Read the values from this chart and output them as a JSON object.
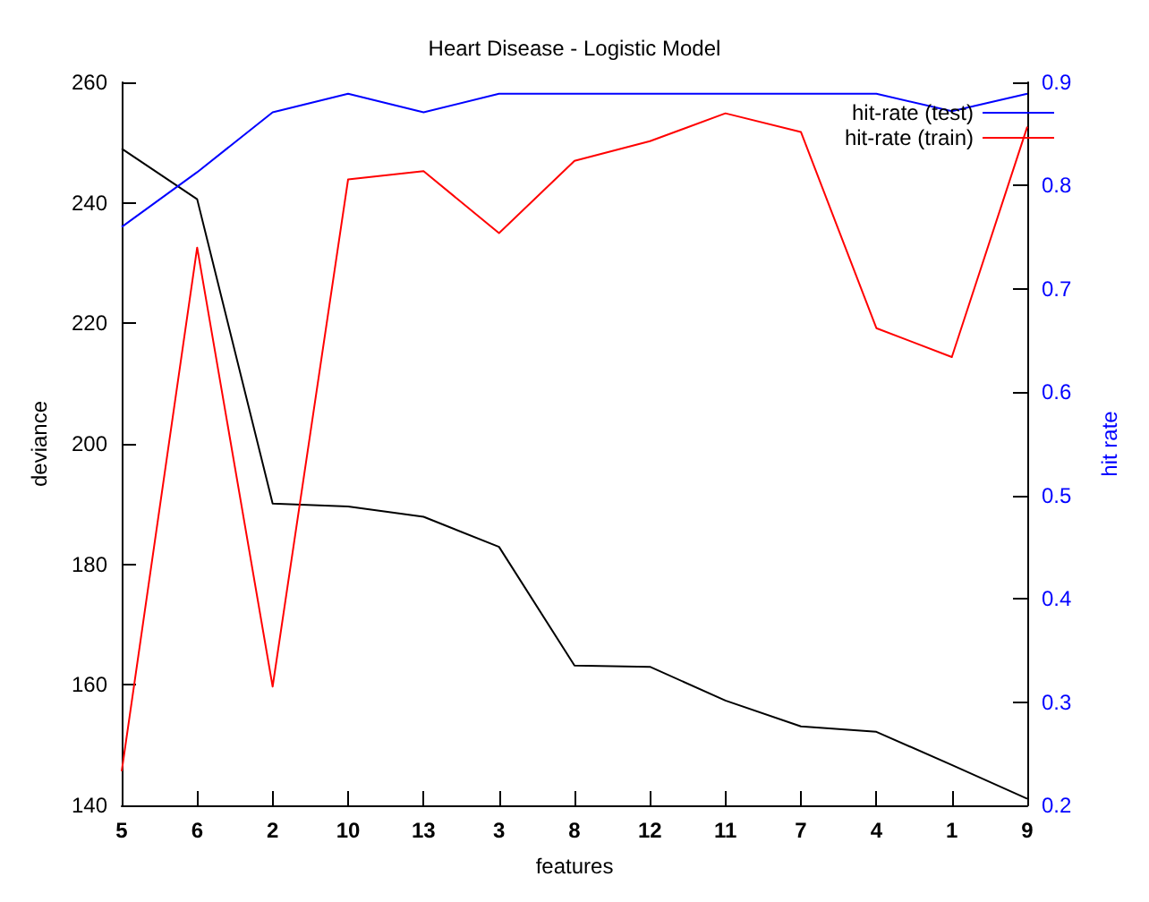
{
  "chart_data": {
    "type": "line",
    "title": "Heart Disease - Logistic Model",
    "xlabel": "features",
    "ylabel": "deviance",
    "y2label": "hit rate",
    "categories": [
      "5",
      "6",
      "2",
      "10",
      "13",
      "3",
      "8",
      "12",
      "11",
      "7",
      "4",
      "1",
      "9"
    ],
    "series": [
      {
        "color": "#000000",
        "values": [
          249.0,
          240.6,
          190.1,
          189.6,
          187.9,
          182.9,
          163.2,
          163.0,
          157.4,
          153.1,
          152.2,
          146.7,
          141.1
        ]
      },
      {
        "name": "hit-rate (test)",
        "color": "#0000ff",
        "axis": "y2",
        "values": [
          0.76,
          0.813,
          0.871,
          0.889,
          0.871,
          0.889,
          0.889,
          0.889,
          0.889,
          0.889,
          0.889,
          0.872,
          0.889
        ]
      },
      {
        "name": "hit-rate (train)",
        "color": "#ff0000",
        "axis": "y2",
        "values": [
          0.233,
          0.74,
          0.315,
          0.806,
          0.814,
          0.754,
          0.824,
          0.843,
          0.87,
          0.852,
          0.662,
          0.634,
          0.857
        ]
      }
    ],
    "ylim": [
      140,
      260
    ],
    "yticks": [
      140,
      160,
      180,
      200,
      220,
      240,
      260
    ],
    "y2lim": [
      0.2,
      0.9
    ],
    "y2ticks": [
      0.2,
      0.3,
      0.4,
      0.5,
      0.6,
      0.7,
      0.8,
      0.9
    ],
    "legend": "top right",
    "grid": false,
    "marker": "none",
    "line_style": "solid"
  }
}
